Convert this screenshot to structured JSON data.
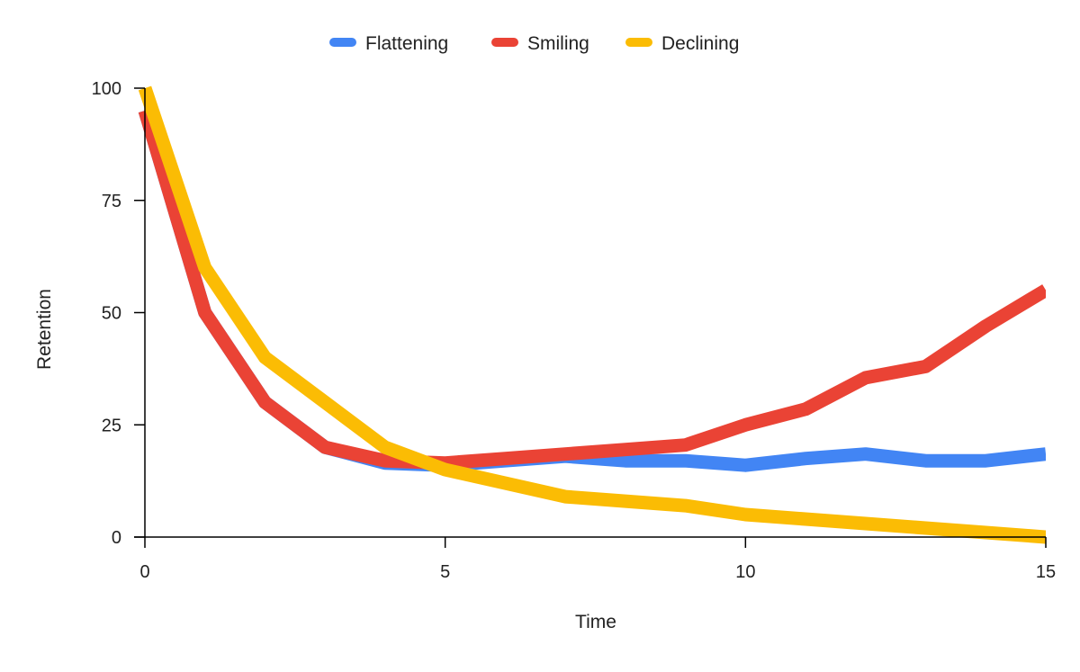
{
  "chart_data": {
    "type": "line",
    "title": "",
    "xlabel": "Time",
    "ylabel": "Retention",
    "xlim": [
      0,
      15
    ],
    "ylim": [
      0,
      100
    ],
    "xticks": [
      0,
      5,
      10,
      15
    ],
    "yticks": [
      0,
      25,
      50,
      75,
      100
    ],
    "grid": false,
    "legend_position": "top-center",
    "x": [
      0,
      1,
      2,
      3,
      4,
      5,
      6,
      7,
      8,
      9,
      10,
      11,
      12,
      13,
      14,
      15
    ],
    "series": [
      {
        "name": "Flattening",
        "color": "#4285F4",
        "values": [
          95,
          50,
          30,
          20,
          16.5,
          16,
          17,
          18,
          17,
          17,
          16,
          17.5,
          18.5,
          17,
          17,
          18.5
        ]
      },
      {
        "name": "Smiling",
        "color": "#EA4335",
        "values": [
          95,
          50,
          30,
          20,
          17,
          16.5,
          17.5,
          18.5,
          19.5,
          20.5,
          25,
          28.5,
          35.5,
          38,
          47,
          55
        ]
      },
      {
        "name": "Declining",
        "color": "#FBBC04",
        "values": [
          100,
          60,
          40,
          30,
          20,
          15,
          12,
          9,
          8,
          7,
          5,
          4,
          3,
          2,
          1,
          0
        ]
      }
    ]
  }
}
